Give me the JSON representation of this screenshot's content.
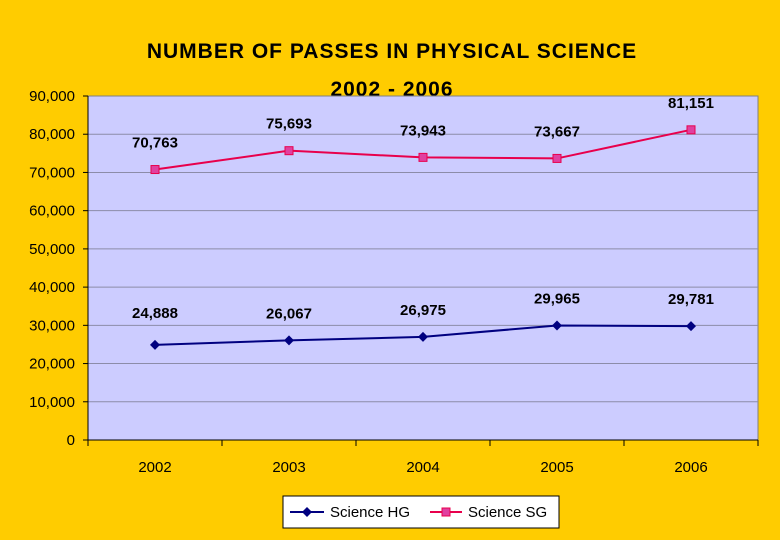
{
  "chart_data": {
    "type": "line",
    "title": "NUMBER OF PASSES IN PHYSICAL SCIENCE",
    "subtitle": "2002 - 2006",
    "categories": [
      "2002",
      "2003",
      "2004",
      "2005",
      "2006"
    ],
    "ylim": [
      0,
      90000
    ],
    "yticks": [
      "0",
      "10,000",
      "20,000",
      "30,000",
      "40,000",
      "50,000",
      "60,000",
      "70,000",
      "80,000",
      "90,000"
    ],
    "grid": true,
    "legend_position": "bottom",
    "series": [
      {
        "name": "Science HG",
        "color": "#000080",
        "marker": "diamond",
        "values": [
          24888,
          26067,
          26975,
          29965,
          29781
        ],
        "labels": [
          "24,888",
          "26,067",
          "26,975",
          "29,965",
          "29,781"
        ]
      },
      {
        "name": "Science SG",
        "color": "#E8004C",
        "marker": "square",
        "values": [
          70763,
          75693,
          73943,
          73667,
          81151
        ],
        "labels": [
          "70,763",
          "75,693",
          "73,943",
          "73,667",
          "81,151"
        ]
      }
    ]
  },
  "colors": {
    "background": "#FFCC00",
    "plot_area": "#CCCCFF",
    "gridline": "#8080A0"
  }
}
